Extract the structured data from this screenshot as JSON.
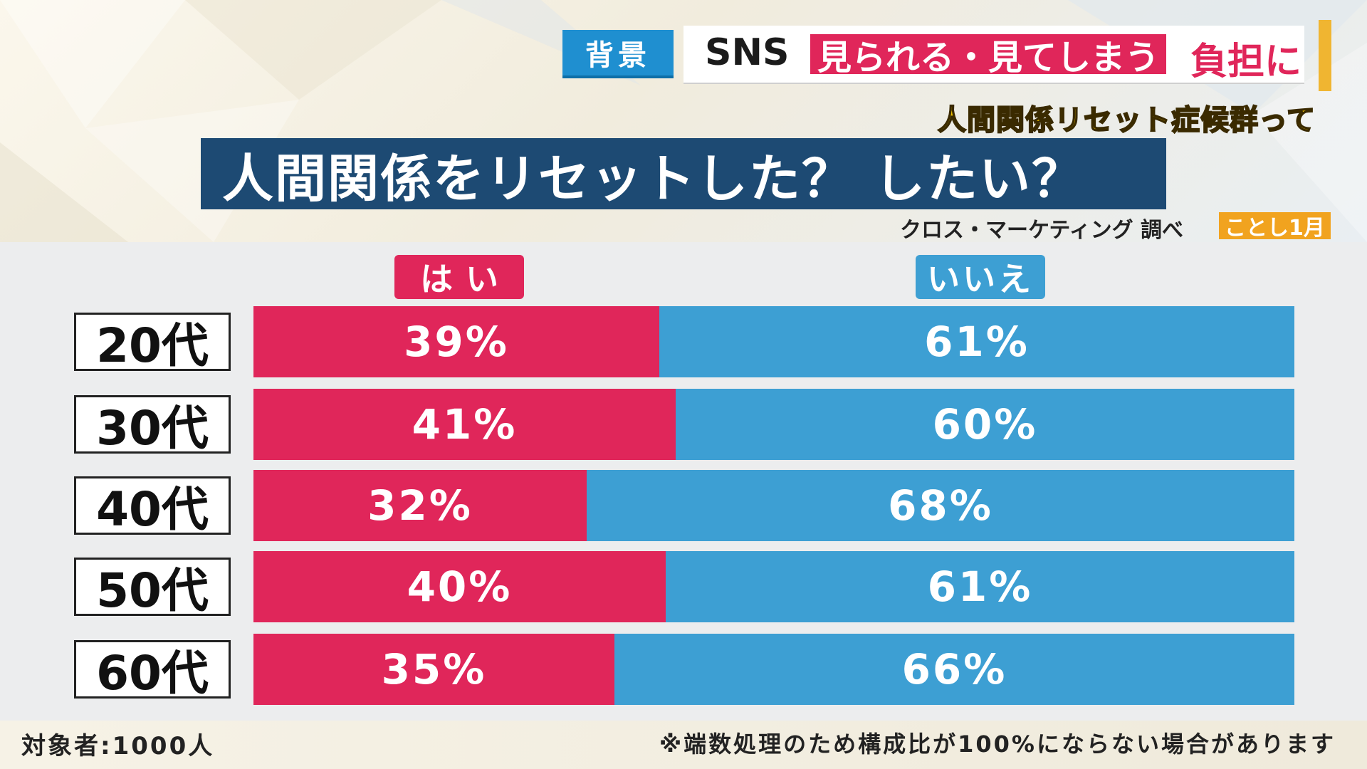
{
  "header": {
    "tag": "背景",
    "sns": "SNS",
    "highlight": "見られる・見てしまう",
    "suffix": "負担に"
  },
  "topic": "人間関係リセット症候群って",
  "question": "人間関係をリセットした？ したい？",
  "source": "クロス・マーケティング 調べ",
  "date_badge": "ことし1月",
  "footnote_left": "対象者:1000人",
  "footnote_right": "※端数処理のため構成比が100%にならない場合があります",
  "colors": {
    "yes": "#e0265a",
    "no": "#3d9fd3",
    "banner": "#1d4a73"
  },
  "chart_data": {
    "type": "bar",
    "orientation": "horizontal",
    "stacked": true,
    "title": "人間関係をリセットした？ したい？",
    "legend": [
      "はい",
      "いいえ"
    ],
    "categories": [
      "20代",
      "30代",
      "40代",
      "50代",
      "60代"
    ],
    "series": [
      {
        "name": "はい",
        "values": [
          39,
          41,
          32,
          40,
          35
        ],
        "labels": [
          "39%",
          "41%",
          "32%",
          "40%",
          "35%"
        ]
      },
      {
        "name": "いいえ",
        "values": [
          61,
          60,
          68,
          61,
          66
        ],
        "labels": [
          "61%",
          "60%",
          "68%",
          "61%",
          "66%"
        ]
      }
    ],
    "unit": "%"
  }
}
